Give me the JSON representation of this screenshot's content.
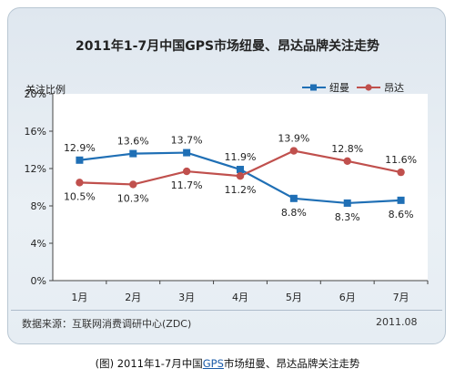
{
  "chart_data": {
    "type": "line",
    "title": "2011年1-7月中国GPS市场纽曼、昂达品牌关注走势",
    "ylabel": "关注比例",
    "xlabel": "",
    "categories": [
      "1月",
      "2月",
      "3月",
      "4月",
      "5月",
      "6月",
      "7月"
    ],
    "ylim": [
      0,
      20
    ],
    "yticks": [
      "0%",
      "4%",
      "8%",
      "12%",
      "16%",
      "20%"
    ],
    "series": [
      {
        "name": "纽曼",
        "values": [
          12.9,
          13.6,
          13.7,
          11.9,
          8.8,
          8.3,
          8.6
        ],
        "labels": [
          "12.9%",
          "13.6%",
          "13.7%",
          "11.9%",
          "8.8%",
          "8.3%",
          "8.6%"
        ],
        "color": "#1f6fb5",
        "marker": "square"
      },
      {
        "name": "昂达",
        "values": [
          10.5,
          10.3,
          11.7,
          11.2,
          13.9,
          12.8,
          11.6
        ],
        "labels": [
          "10.5%",
          "10.3%",
          "11.7%",
          "11.2%",
          "13.9%",
          "12.8%",
          "11.6%"
        ],
        "color": "#c0504d",
        "marker": "circle"
      }
    ],
    "grid": false,
    "legend": "top-right"
  },
  "source": "数据来源：互联网消费调研中心(ZDC)",
  "date": "2011.08",
  "caption": {
    "prefix": "(图) 2011年1-7月中国",
    "link": "GPS",
    "suffix": "市场纽曼、昂达品牌关注走势"
  }
}
